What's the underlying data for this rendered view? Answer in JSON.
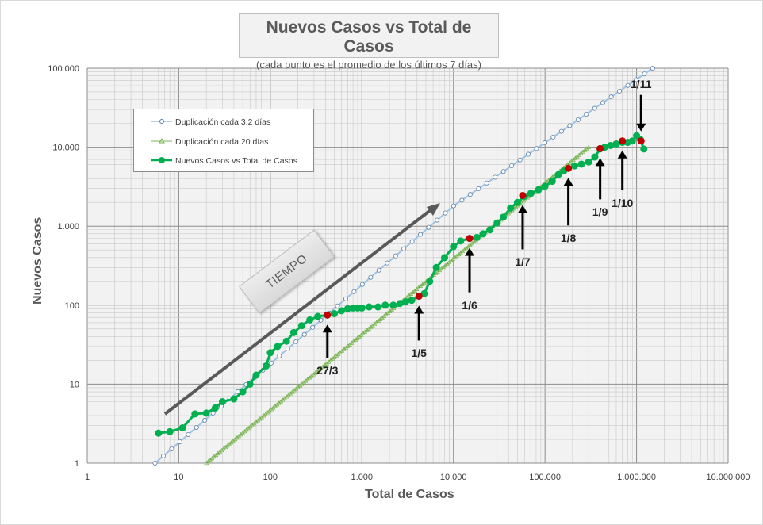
{
  "chart_data": {
    "type": "scatter",
    "title": "Nuevos Casos vs Total de Casos",
    "subtitle": "(cada punto es el promedio  de los últimos  7 días)",
    "xlabel": "Total de Casos",
    "ylabel": "Nuevos Casos",
    "x_scale": "log",
    "y_scale": "log",
    "xlim": [
      1,
      10000000
    ],
    "ylim": [
      1,
      100000
    ],
    "x_ticks": [
      1,
      10,
      100,
      1000,
      10000,
      100000,
      1000000,
      10000000
    ],
    "x_tick_labels": [
      "1",
      "10",
      "100",
      "1.000",
      "10.000",
      "100.000",
      "1.000.000",
      "10.000.000"
    ],
    "y_ticks": [
      1,
      10,
      100,
      1000,
      10000,
      100000
    ],
    "y_tick_labels": [
      "1",
      "10",
      "100",
      "1.000",
      "10.000",
      "100.000"
    ],
    "grid": "major and minor",
    "legend_position": "top-left",
    "series": [
      {
        "name": "Duplicación cada 3,2 días",
        "color": "#9dc3e6",
        "marker": "open-circle",
        "x": [
          5.5,
          10000,
          1500000
        ],
        "y": [
          1,
          1800,
          100000
        ]
      },
      {
        "name": "Duplicación cada 20 días",
        "color": "#a9d18e",
        "marker": "open-triangle",
        "x": [
          20,
          300000
        ],
        "y": [
          1,
          10000
        ]
      },
      {
        "name": "Nuevos Casos vs Total de Casos",
        "color": "#00b050",
        "marker": "filled-circle",
        "x": [
          6,
          8,
          11,
          15,
          20,
          25,
          30,
          40,
          50,
          60,
          70,
          90,
          100,
          120,
          150,
          180,
          220,
          270,
          330,
          420,
          500,
          600,
          700,
          800,
          900,
          1000,
          1200,
          1500,
          1800,
          2200,
          2600,
          3000,
          3500,
          4200,
          4800,
          5500,
          6500,
          8000,
          10000,
          12000,
          15000,
          18000,
          21000,
          25000,
          30000,
          35000,
          42000,
          50000,
          60000,
          70000,
          85000,
          100000,
          120000,
          140000,
          160000,
          180000,
          210000,
          250000,
          300000,
          350000,
          400000,
          450000,
          520000,
          600000,
          700000,
          800000,
          900000,
          1000000,
          1100000,
          1200000
        ],
        "y": [
          2.4,
          2.5,
          2.8,
          4.2,
          4.3,
          5,
          6,
          6.5,
          8,
          10,
          13,
          17,
          25,
          30,
          35,
          45,
          55,
          65,
          72,
          75,
          78,
          85,
          90,
          92,
          92,
          92,
          95,
          95,
          100,
          100,
          105,
          110,
          115,
          130,
          140,
          200,
          300,
          400,
          550,
          650,
          700,
          720,
          800,
          900,
          1100,
          1300,
          1700,
          2000,
          2400,
          2600,
          2900,
          3200,
          3700,
          4500,
          5000,
          5400,
          5800,
          6100,
          6500,
          7500,
          9500,
          10000,
          10500,
          11000,
          11500,
          11500,
          12000,
          14000,
          12500,
          9500
        ]
      }
    ],
    "highlights": [
      {
        "label": "27/3",
        "x": 420,
        "y": 75
      },
      {
        "label": "1/5",
        "x": 4200,
        "y": 130
      },
      {
        "label": "1/6",
        "x": 15000,
        "y": 700
      },
      {
        "label": "1/7",
        "x": 57000,
        "y": 2450
      },
      {
        "label": "1/8",
        "x": 180000,
        "y": 5400
      },
      {
        "label": "1/9",
        "x": 400000,
        "y": 9600
      },
      {
        "label": "1/10",
        "x": 700000,
        "y": 12000
      },
      {
        "label": "1/11",
        "x": 1120000,
        "y": 12000
      }
    ],
    "tiempo_label": "TIEMPO"
  }
}
